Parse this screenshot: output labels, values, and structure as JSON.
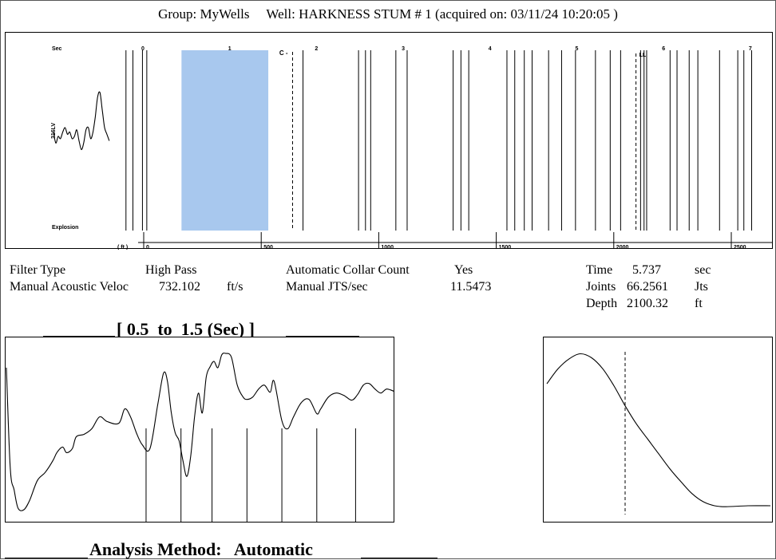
{
  "header": {
    "group_label": "Group:",
    "group": "MyWells",
    "well_label": "Well:",
    "well": "HARKNESS STUM # 1",
    "acquired": "(acquired on: 03/11/24 10:20:05 )"
  },
  "params": {
    "filter_type_label": "Filter Type",
    "filter_type_value": "High Pass",
    "manual_velocity_label": "Manual Acoustic Veloc",
    "manual_velocity_value": "732.102",
    "manual_velocity_unit": "ft/s",
    "auto_collar_label": "Automatic Collar Count",
    "auto_collar_value": "Yes",
    "manual_jts_label": "Manual JTS/sec",
    "manual_jts_value": "11.5473",
    "time_label": "Time",
    "time_value": "5.737",
    "time_unit": "sec",
    "joints_label": "Joints",
    "joints_value": "66.2561",
    "joints_unit": "Jts",
    "depth_label": "Depth",
    "depth_value": "2100.32",
    "depth_unit": "ft"
  },
  "window_title": "[ 0.5  to  1.5 (Sec) ]",
  "analysis_method": "Analysis Method:   Automatic",
  "colors": {
    "highlight": "#a8c8ee",
    "ink": "#000000",
    "frame": "#555555"
  },
  "chart_data": [
    {
      "type": "line",
      "name": "overview-acoustic-trace",
      "top_labels": {
        "left": "Sec",
        "marker_c": "C",
        "marker_ll": "LL"
      },
      "left_label": "316LV",
      "bottom_labels": {
        "left": "Explosion",
        "unit": "( ft )"
      },
      "sec_ticks": [
        "0",
        "1",
        "2",
        "3",
        "4",
        "5",
        "6",
        "7"
      ],
      "ft_ticks": [
        "0",
        "500",
        "1000",
        "1500",
        "2000",
        "2500"
      ],
      "highlight_sec": [
        0.5,
        1.5
      ],
      "marker_c_sec": 1.78,
      "marker_ll_sec": 5.737,
      "collar_times_sec": [
        -0.14,
        -0.06,
        0.05,
        0.1,
        1.9,
        2.54,
        2.62,
        2.68,
        2.97,
        3.1,
        3.63,
        3.72,
        3.81,
        4.25,
        4.34,
        4.45,
        4.54,
        4.73,
        4.88,
        5.04,
        5.27,
        5.44,
        5.56,
        5.79,
        5.83,
        5.86,
        6.13,
        6.21,
        6.35,
        6.45,
        6.7,
        6.91,
        6.98,
        7.07
      ],
      "trace": [
        [
          -1.0,
          0.1
        ],
        [
          -0.97,
          -0.15
        ],
        [
          -0.94,
          0.0
        ],
        [
          -0.91,
          -0.05
        ],
        [
          -0.88,
          0.1
        ],
        [
          -0.85,
          0.2
        ],
        [
          -0.82,
          0.05
        ],
        [
          -0.79,
          0.1
        ],
        [
          -0.76,
          -0.05
        ],
        [
          -0.73,
          0.0
        ],
        [
          -0.7,
          0.15
        ],
        [
          -0.67,
          -0.1
        ],
        [
          -0.64,
          -0.3
        ],
        [
          -0.61,
          -0.15
        ],
        [
          -0.58,
          0.15
        ],
        [
          -0.55,
          0.2
        ],
        [
          -0.52,
          -0.05
        ],
        [
          -0.49,
          0.1
        ],
        [
          -0.46,
          0.45
        ],
        [
          -0.43,
          0.9
        ],
        [
          -0.4,
          1.0
        ],
        [
          -0.37,
          0.6
        ],
        [
          -0.34,
          0.2
        ],
        [
          -0.31,
          0.05
        ],
        [
          -0.28,
          -0.1
        ]
      ]
    },
    {
      "type": "line",
      "name": "windowed-acoustic-trace",
      "x_range_sec": [
        0.5,
        1.5
      ],
      "collar_marks_sec": [
        0.86,
        0.95,
        1.03,
        1.12,
        1.21,
        1.3,
        1.4
      ],
      "trace": [
        [
          0.5,
          0.82
        ],
        [
          0.51,
          -0.45
        ],
        [
          0.52,
          -0.72
        ],
        [
          0.53,
          -0.95
        ],
        [
          0.545,
          -0.97
        ],
        [
          0.56,
          -0.85
        ],
        [
          0.58,
          -0.6
        ],
        [
          0.6,
          -0.5
        ],
        [
          0.62,
          -0.35
        ],
        [
          0.63,
          -0.25
        ],
        [
          0.645,
          -0.18
        ],
        [
          0.655,
          -0.25
        ],
        [
          0.67,
          -0.2
        ],
        [
          0.68,
          -0.05
        ],
        [
          0.7,
          -0.02
        ],
        [
          0.72,
          0.05
        ],
        [
          0.74,
          0.2
        ],
        [
          0.76,
          0.14
        ],
        [
          0.79,
          0.12
        ],
        [
          0.805,
          0.3
        ],
        [
          0.82,
          0.2
        ],
        [
          0.835,
          0.0
        ],
        [
          0.85,
          -0.15
        ],
        [
          0.87,
          -0.2
        ],
        [
          0.89,
          0.35
        ],
        [
          0.905,
          0.75
        ],
        [
          0.915,
          0.65
        ],
        [
          0.925,
          0.25
        ],
        [
          0.935,
          0.0
        ],
        [
          0.945,
          -0.1
        ],
        [
          0.955,
          -0.35
        ],
        [
          0.965,
          -0.55
        ],
        [
          0.975,
          -0.3
        ],
        [
          0.985,
          0.2
        ],
        [
          0.995,
          0.5
        ],
        [
          1.005,
          0.25
        ],
        [
          1.015,
          0.7
        ],
        [
          1.025,
          0.83
        ],
        [
          1.035,
          0.9
        ],
        [
          1.045,
          0.82
        ],
        [
          1.055,
          0.98
        ],
        [
          1.065,
          1.0
        ],
        [
          1.08,
          0.95
        ],
        [
          1.095,
          0.6
        ],
        [
          1.11,
          0.45
        ],
        [
          1.12,
          0.42
        ],
        [
          1.135,
          0.45
        ],
        [
          1.15,
          0.55
        ],
        [
          1.165,
          0.6
        ],
        [
          1.18,
          0.51
        ],
        [
          1.19,
          0.65
        ],
        [
          1.21,
          0.15
        ],
        [
          1.225,
          0.05
        ],
        [
          1.24,
          0.2
        ],
        [
          1.26,
          0.38
        ],
        [
          1.28,
          0.42
        ],
        [
          1.3,
          0.24
        ],
        [
          1.31,
          0.3
        ],
        [
          1.33,
          0.45
        ],
        [
          1.35,
          0.5
        ],
        [
          1.37,
          0.47
        ],
        [
          1.39,
          0.41
        ],
        [
          1.405,
          0.48
        ],
        [
          1.42,
          0.6
        ],
        [
          1.435,
          0.62
        ],
        [
          1.45,
          0.55
        ],
        [
          1.465,
          0.5
        ],
        [
          1.48,
          0.55
        ],
        [
          1.5,
          0.52
        ]
      ],
      "y_range": [
        -1.0,
        1.1
      ]
    },
    {
      "type": "line",
      "name": "autocorrelation-curve",
      "dashed_marker_x": 0.35,
      "trace": [
        [
          0.0,
          0.6
        ],
        [
          0.05,
          0.75
        ],
        [
          0.1,
          0.85
        ],
        [
          0.15,
          0.9
        ],
        [
          0.2,
          0.86
        ],
        [
          0.25,
          0.75
        ],
        [
          0.3,
          0.58
        ],
        [
          0.35,
          0.38
        ],
        [
          0.4,
          0.2
        ],
        [
          0.45,
          0.05
        ],
        [
          0.5,
          -0.1
        ],
        [
          0.55,
          -0.25
        ],
        [
          0.6,
          -0.38
        ],
        [
          0.65,
          -0.5
        ],
        [
          0.7,
          -0.58
        ],
        [
          0.75,
          -0.62
        ],
        [
          0.8,
          -0.63
        ],
        [
          0.9,
          -0.62
        ],
        [
          1.0,
          -0.62
        ]
      ],
      "y_range": [
        -0.7,
        1.0
      ]
    }
  ]
}
